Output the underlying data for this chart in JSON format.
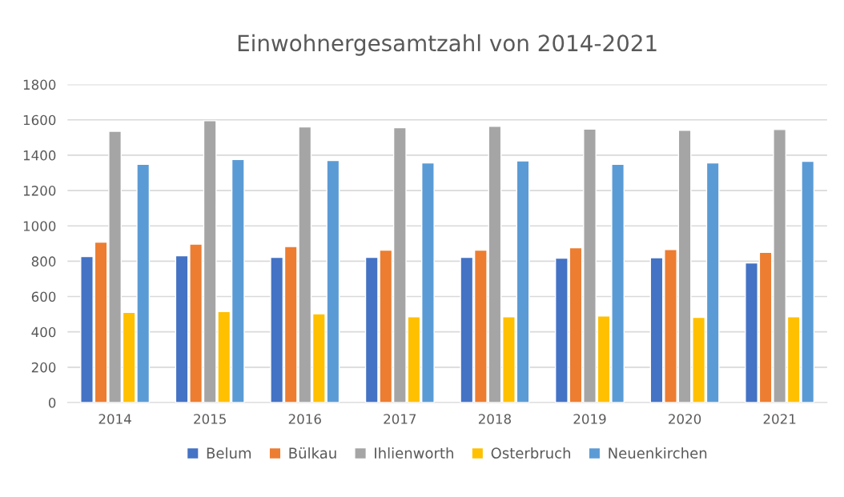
{
  "chart_data": {
    "type": "bar",
    "title": "Einwohnergesamtzahl von 2014-2021",
    "categories": [
      "2014",
      "2015",
      "2016",
      "2017",
      "2018",
      "2019",
      "2020",
      "2021"
    ],
    "series": [
      {
        "name": "Belum",
        "color": "#4472c4",
        "values": [
          826,
          831,
          822,
          822,
          822,
          817,
          820,
          790
        ]
      },
      {
        "name": "Bülkau",
        "color": "#ed7d31",
        "values": [
          908,
          897,
          883,
          863,
          862,
          876,
          866,
          850
        ]
      },
      {
        "name": "Ihlienworth",
        "color": "#a5a5a5",
        "values": [
          1535,
          1595,
          1560,
          1555,
          1563,
          1548,
          1541,
          1545
        ]
      },
      {
        "name": "Osterbruch",
        "color": "#ffc000",
        "values": [
          510,
          515,
          502,
          486,
          485,
          490,
          482,
          485
        ]
      },
      {
        "name": "Neuenkirchen",
        "color": "#5b9bd5",
        "values": [
          1348,
          1375,
          1370,
          1356,
          1368,
          1348,
          1356,
          1365
        ]
      }
    ],
    "ylim": [
      0,
      1800
    ],
    "yticks": [
      0,
      200,
      400,
      600,
      800,
      1000,
      1200,
      1400,
      1600,
      1800
    ],
    "grid": "y",
    "legend": "bottom"
  }
}
